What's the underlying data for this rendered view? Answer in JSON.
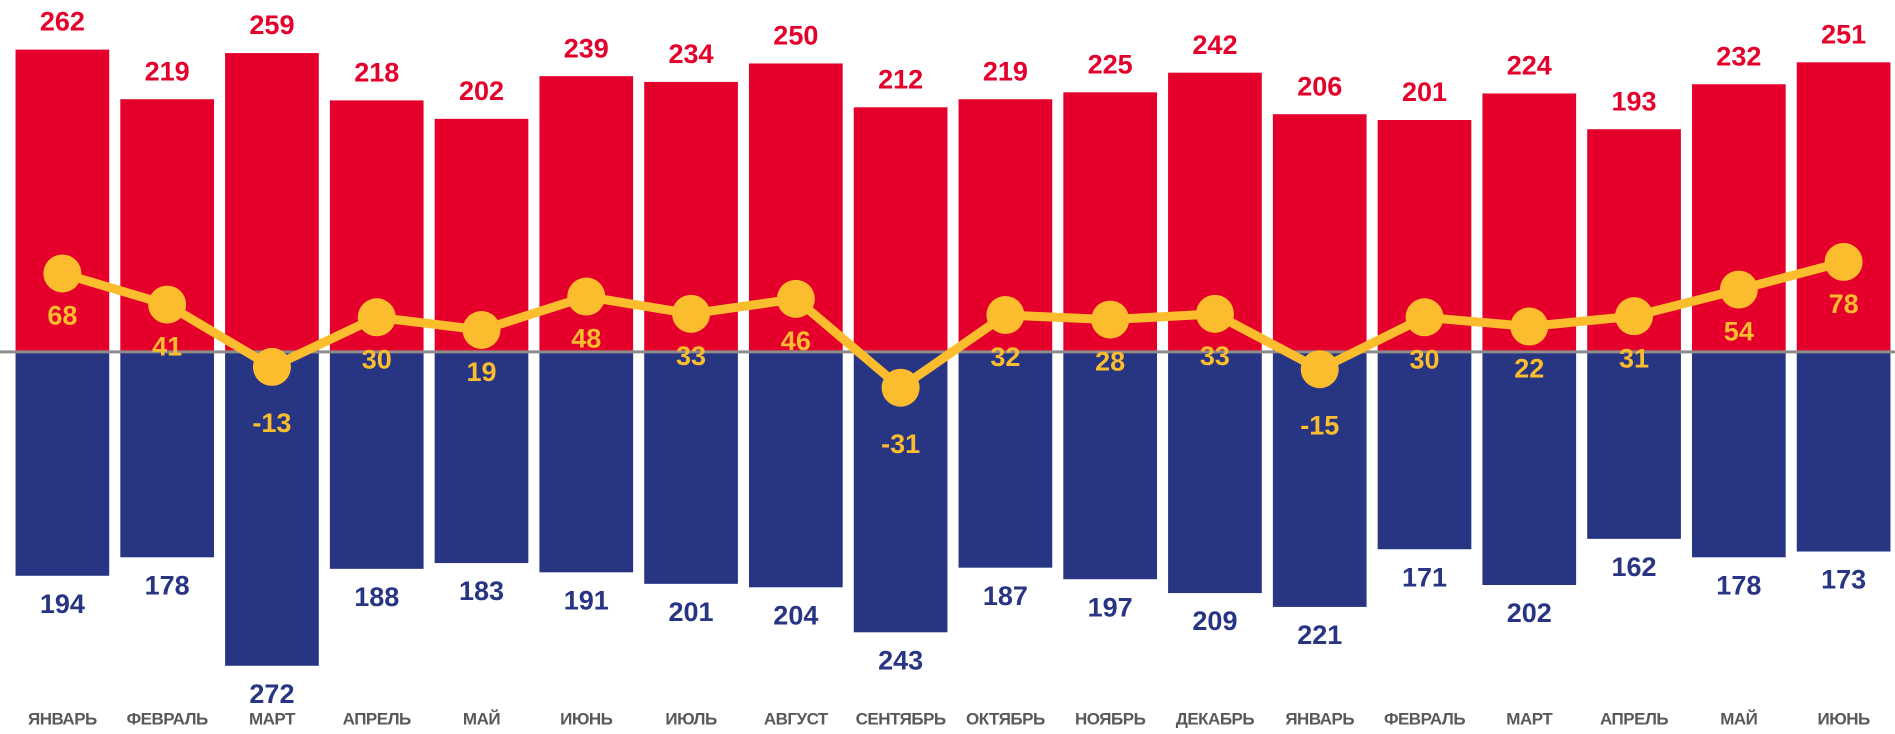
{
  "chart_data": {
    "type": "bar-line",
    "categories": [
      "ЯНВАРЬ",
      "ФЕВРАЛЬ",
      "МАРТ",
      "АПРЕЛЬ",
      "МАЙ",
      "ИЮНЬ",
      "ИЮЛЬ",
      "АВГУСТ",
      "СЕНТЯБРЬ",
      "ОКТЯБРЬ",
      "НОЯБРЬ",
      "ДЕКАБРЬ",
      "ЯНВАРЬ",
      "ФЕВРАЛЬ",
      "МАРТ",
      "АПРЕЛЬ",
      "МАЙ",
      "ИЮНЬ"
    ],
    "series": [
      {
        "type": "bar",
        "color": "#e4002b",
        "values": [
          262,
          219,
          259,
          218,
          202,
          239,
          234,
          250,
          212,
          219,
          225,
          242,
          206,
          201,
          224,
          193,
          232,
          251
        ]
      },
      {
        "type": "bar",
        "color": "#283583",
        "values": [
          -194,
          -178,
          -272,
          -188,
          -183,
          -191,
          -201,
          -204,
          -243,
          -187,
          -197,
          -209,
          -221,
          -171,
          -202,
          -162,
          -178,
          -173
        ],
        "value_labels": [
          "194",
          "178",
          "272",
          "188",
          "183",
          "191",
          "201",
          "204",
          "243",
          "187",
          "197",
          "209",
          "221",
          "171",
          "202",
          "162",
          "178",
          "173"
        ]
      },
      {
        "type": "line",
        "color": "#fbbd2e",
        "values": [
          68,
          41,
          -13,
          30,
          19,
          48,
          33,
          46,
          -31,
          32,
          28,
          33,
          -15,
          30,
          22,
          31,
          54,
          78
        ]
      }
    ],
    "ylim": [
      -280,
      305
    ]
  }
}
